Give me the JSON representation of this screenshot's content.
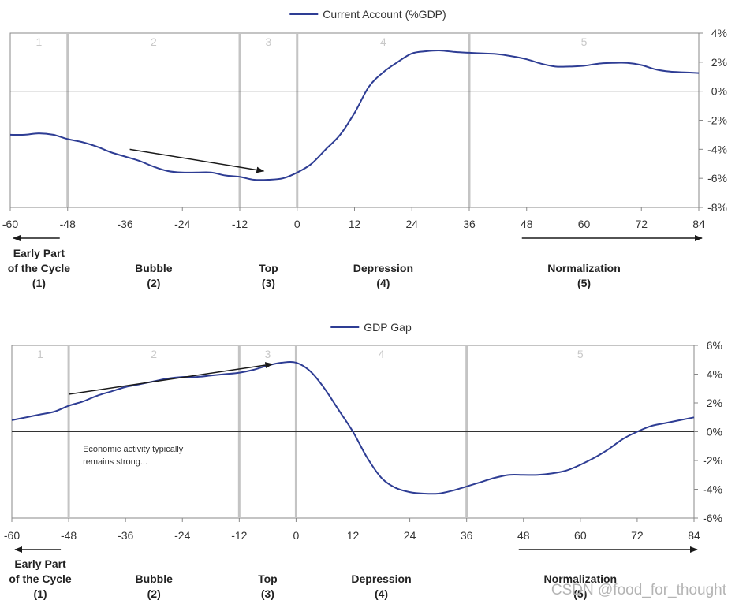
{
  "chart_data": [
    {
      "type": "line",
      "legend": "Current Account (%GDP)",
      "x": [
        -60,
        -57,
        -54,
        -51,
        -48,
        -45,
        -42,
        -39,
        -36,
        -33,
        -30,
        -27,
        -24,
        -21,
        -18,
        -15,
        -12,
        -9,
        -6,
        -3,
        0,
        3,
        6,
        9,
        12,
        15,
        18,
        21,
        24,
        27,
        30,
        33,
        36,
        39,
        42,
        45,
        48,
        51,
        54,
        57,
        60,
        63,
        66,
        69,
        72,
        75,
        78,
        81,
        84
      ],
      "y": [
        -3.0,
        -3.0,
        -2.9,
        -3.0,
        -3.3,
        -3.5,
        -3.8,
        -4.2,
        -4.5,
        -4.8,
        -5.2,
        -5.5,
        -5.6,
        -5.6,
        -5.6,
        -5.8,
        -5.9,
        -6.1,
        -6.1,
        -6.0,
        -5.6,
        -5.0,
        -4.0,
        -3.0,
        -1.5,
        0.3,
        1.3,
        2.0,
        2.6,
        2.75,
        2.8,
        2.7,
        2.65,
        2.6,
        2.55,
        2.4,
        2.2,
        1.9,
        1.7,
        1.7,
        1.75,
        1.9,
        1.95,
        1.95,
        1.8,
        1.5,
        1.35,
        1.3,
        1.25
      ],
      "xticks": [
        "-60",
        "-48",
        "-36",
        "-24",
        "-12",
        "0",
        "12",
        "24",
        "36",
        "48",
        "60",
        "72",
        "84"
      ],
      "yticks": [
        "4%",
        "2%",
        "0%",
        "-2%",
        "-4%",
        "-6%",
        "-8%"
      ],
      "ylim": [
        -8,
        4
      ],
      "xlim": [
        -60,
        84
      ],
      "phase_boundaries": [
        -48,
        -12,
        0,
        36
      ],
      "phase_numbers": [
        "1",
        "2",
        "3",
        "4",
        "5"
      ],
      "phase_number_x": [
        -54,
        -30,
        -6,
        18,
        60
      ],
      "trend_arrow": {
        "from": [
          -35,
          -4.0
        ],
        "to": [
          -7,
          -5.5
        ]
      },
      "annotation": []
    },
    {
      "type": "line",
      "legend": "GDP Gap",
      "x": [
        -60,
        -57,
        -54,
        -51,
        -48,
        -45,
        -42,
        -39,
        -36,
        -33,
        -30,
        -27,
        -24,
        -21,
        -18,
        -15,
        -12,
        -9,
        -6,
        -3,
        0,
        3,
        6,
        9,
        12,
        15,
        18,
        21,
        24,
        27,
        30,
        33,
        36,
        39,
        42,
        45,
        48,
        51,
        54,
        57,
        60,
        63,
        66,
        69,
        72,
        75,
        78,
        81,
        84
      ],
      "y": [
        0.8,
        1.0,
        1.2,
        1.4,
        1.8,
        2.1,
        2.5,
        2.8,
        3.1,
        3.3,
        3.5,
        3.7,
        3.8,
        3.8,
        3.9,
        4.0,
        4.1,
        4.3,
        4.6,
        4.8,
        4.8,
        4.2,
        3.0,
        1.5,
        0.0,
        -1.8,
        -3.2,
        -3.9,
        -4.2,
        -4.3,
        -4.3,
        -4.1,
        -3.8,
        -3.5,
        -3.2,
        -3.0,
        -3.0,
        -3.0,
        -2.9,
        -2.7,
        -2.3,
        -1.8,
        -1.2,
        -0.5,
        0.0,
        0.4,
        0.6,
        0.8,
        1.0
      ],
      "xticks": [
        "-60",
        "-48",
        "-36",
        "-24",
        "-12",
        "0",
        "12",
        "24",
        "36",
        "48",
        "60",
        "72",
        "84"
      ],
      "yticks": [
        "6%",
        "4%",
        "2%",
        "0%",
        "-2%",
        "-4%",
        "-6%"
      ],
      "ylim": [
        -6,
        6
      ],
      "xlim": [
        -60,
        84
      ],
      "phase_boundaries": [
        -48,
        -12,
        0,
        36
      ],
      "phase_numbers": [
        "1",
        "2",
        "3",
        "4",
        "5"
      ],
      "phase_number_x": [
        -54,
        -30,
        -6,
        18,
        60
      ],
      "trend_arrow": {
        "from": [
          -48,
          2.6
        ],
        "to": [
          -5,
          4.7
        ]
      },
      "annotation": [
        "Economic activity typically",
        "remains strong..."
      ]
    }
  ],
  "phase_labels": [
    {
      "lines": [
        "Early Part",
        "of the Cycle",
        "(1)"
      ]
    },
    {
      "lines": [
        "Bubble",
        "(2)"
      ]
    },
    {
      "lines": [
        "Top",
        "(3)"
      ]
    },
    {
      "lines": [
        "Depression",
        "(4)"
      ]
    },
    {
      "lines": [
        "Normalization",
        "(5)"
      ]
    }
  ],
  "watermark": "CSDN @food_for_thought",
  "colors": {
    "series": "#2e3d94",
    "boundary": "#c4c4c4",
    "axis": "#888888",
    "arrow": "#1a1a1a"
  }
}
